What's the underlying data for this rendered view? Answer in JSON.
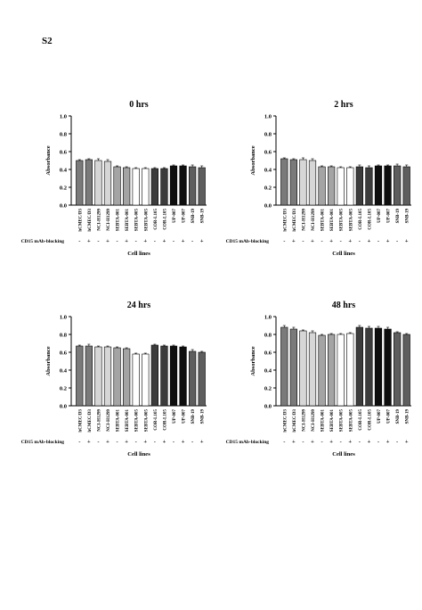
{
  "page_label": "S2",
  "chart_data": [
    {
      "type": "bar",
      "title": "0 hrs",
      "xlabel": "Cell lines",
      "ylabel": "Absorbance",
      "ylim": [
        0,
        1.0
      ],
      "yticks": [
        "0.0",
        "0.2",
        "0.4",
        "0.6",
        "0.8",
        "1.0"
      ],
      "categories": [
        "hCMEC/D3",
        "hCMEC/D3",
        "NCI-H1299",
        "NCI-H1299",
        "SEBTA-001",
        "SEBTA-001",
        "SEBTA-005",
        "SEBTA-005",
        "COR-L105",
        "COR-L105",
        "UP-007",
        "UP-007",
        "SNB-19",
        "SNB-19"
      ],
      "blocking_label": "CD15 mAb-blocking",
      "blocking": [
        "-",
        "+",
        "-",
        "+",
        "-",
        "+",
        "-",
        "+",
        "-",
        "+",
        "-",
        "+",
        "-",
        "+"
      ],
      "values": [
        0.5,
        0.51,
        0.5,
        0.49,
        0.43,
        0.42,
        0.41,
        0.41,
        0.41,
        0.41,
        0.44,
        0.44,
        0.43,
        0.42
      ],
      "errors": [
        0.01,
        0.01,
        0.02,
        0.02,
        0.01,
        0.01,
        0.01,
        0.01,
        0.01,
        0.01,
        0.01,
        0.01,
        0.02,
        0.02
      ],
      "bar_colors": [
        "#7a7a7a",
        "#7a7a7a",
        "#d6d6d6",
        "#d6d6d6",
        "#a4a4a4",
        "#a4a4a4",
        "#ffffff",
        "#ffffff",
        "#3c3c3c",
        "#3c3c3c",
        "#0e0e0e",
        "#0e0e0e",
        "#5e5e5e",
        "#5e5e5e"
      ]
    },
    {
      "type": "bar",
      "title": "2 hrs",
      "xlabel": "Cell lines",
      "ylabel": "Absorbance",
      "ylim": [
        0,
        1.0
      ],
      "yticks": [
        "0.0",
        "0.2",
        "0.4",
        "0.6",
        "0.8",
        "1.0"
      ],
      "categories": [
        "hCMEC/D3",
        "hCMEC/D3",
        "NCI-H1299",
        "NCI-H1299",
        "SEBTA-001",
        "SEBTA-001",
        "SEBTA-005",
        "SEBTA-005",
        "COR-L105",
        "COR-L105",
        "UP-007",
        "UP-007",
        "SNB-19",
        "SNB-19"
      ],
      "blocking_label": "CD15 mAb-blocking",
      "blocking": [
        "-",
        "+",
        "-",
        "+",
        "-",
        "+",
        "-",
        "+",
        "-",
        "+",
        "-",
        "+",
        "-",
        "+"
      ],
      "values": [
        0.52,
        0.51,
        0.51,
        0.5,
        0.43,
        0.43,
        0.42,
        0.42,
        0.43,
        0.42,
        0.44,
        0.44,
        0.44,
        0.43
      ],
      "errors": [
        0.01,
        0.01,
        0.02,
        0.02,
        0.01,
        0.01,
        0.01,
        0.01,
        0.02,
        0.02,
        0.01,
        0.01,
        0.02,
        0.02
      ],
      "bar_colors": [
        "#7a7a7a",
        "#7a7a7a",
        "#d6d6d6",
        "#d6d6d6",
        "#a4a4a4",
        "#a4a4a4",
        "#ffffff",
        "#ffffff",
        "#3c3c3c",
        "#3c3c3c",
        "#0e0e0e",
        "#0e0e0e",
        "#5e5e5e",
        "#5e5e5e"
      ]
    },
    {
      "type": "bar",
      "title": "24 hrs",
      "xlabel": "Cell lines",
      "ylabel": "Absorbance",
      "ylim": [
        0,
        1.0
      ],
      "yticks": [
        "0.0",
        "0.2",
        "0.4",
        "0.6",
        "0.8",
        "1.0"
      ],
      "categories": [
        "hCMEC/D3",
        "hCMEC/D3",
        "NCI-H1299",
        "NCI-H1299",
        "SEBTA-001",
        "SEBTA-001",
        "SEBTA-005",
        "SEBTA-005",
        "COR-L105",
        "COR-L105",
        "UP-007",
        "UP-007",
        "SNB-19",
        "SNB-19"
      ],
      "blocking_label": "CD15 mAb-blocking",
      "blocking": [
        "-",
        "+",
        "-",
        "+",
        "-",
        "+",
        "-",
        "+",
        "-",
        "+",
        "-",
        "+",
        "-",
        "+"
      ],
      "values": [
        0.67,
        0.67,
        0.66,
        0.66,
        0.65,
        0.64,
        0.58,
        0.58,
        0.68,
        0.67,
        0.67,
        0.66,
        0.61,
        0.6
      ],
      "errors": [
        0.01,
        0.02,
        0.01,
        0.01,
        0.01,
        0.01,
        0.01,
        0.01,
        0.01,
        0.01,
        0.01,
        0.01,
        0.02,
        0.01
      ],
      "bar_colors": [
        "#7a7a7a",
        "#7a7a7a",
        "#d6d6d6",
        "#d6d6d6",
        "#a4a4a4",
        "#a4a4a4",
        "#ffffff",
        "#ffffff",
        "#3c3c3c",
        "#3c3c3c",
        "#0e0e0e",
        "#0e0e0e",
        "#5e5e5e",
        "#5e5e5e"
      ]
    },
    {
      "type": "bar",
      "title": "48 hrs",
      "xlabel": "Cell lines",
      "ylabel": "Absorbance",
      "ylim": [
        0,
        1.0
      ],
      "yticks": [
        "0.0",
        "0.2",
        "0.4",
        "0.6",
        "0.8",
        "1.0"
      ],
      "categories": [
        "hCMEC/D3",
        "hCMEC/D3",
        "NCI-H1299",
        "NCI-H1299",
        "SEBTA-001",
        "SEBTA-001",
        "SEBTA-005",
        "SEBTA-005",
        "COR-L105",
        "COR-L105",
        "UP-007",
        "UP-007",
        "SNB-19",
        "SNB-19"
      ],
      "blocking_label": "CD15 mAb-blocking",
      "blocking": [
        "-",
        "+",
        "-",
        "+",
        "-",
        "+",
        "-",
        "+",
        "-",
        "+",
        "-",
        "+",
        "-",
        "+"
      ],
      "values": [
        0.88,
        0.86,
        0.84,
        0.82,
        0.79,
        0.8,
        0.8,
        0.81,
        0.88,
        0.87,
        0.87,
        0.86,
        0.82,
        0.8
      ],
      "errors": [
        0.02,
        0.02,
        0.01,
        0.02,
        0.01,
        0.01,
        0.01,
        0.01,
        0.02,
        0.02,
        0.02,
        0.02,
        0.01,
        0.01
      ],
      "bar_colors": [
        "#7a7a7a",
        "#7a7a7a",
        "#d6d6d6",
        "#d6d6d6",
        "#a4a4a4",
        "#a4a4a4",
        "#ffffff",
        "#ffffff",
        "#3c3c3c",
        "#3c3c3c",
        "#0e0e0e",
        "#0e0e0e",
        "#5e5e5e",
        "#5e5e5e"
      ]
    }
  ]
}
